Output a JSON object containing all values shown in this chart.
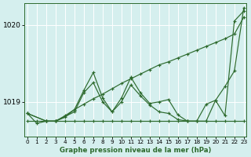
{
  "xlabel": "Graphe pression niveau de la mer (hPa)",
  "bg_color": "#d5efee",
  "grid_color": "#ffffff",
  "line_color": "#2d6a2d",
  "xlim": [
    -0.3,
    23.3
  ],
  "ylim": [
    1018.55,
    1020.28
  ],
  "yticks": [
    1019,
    1020
  ],
  "xticks": [
    0,
    1,
    2,
    3,
    4,
    5,
    6,
    7,
    8,
    9,
    10,
    11,
    12,
    13,
    14,
    15,
    16,
    17,
    18,
    19,
    20,
    21,
    22,
    23
  ],
  "series": [
    {
      "x": [
        0,
        1,
        2,
        3,
        4,
        5,
        6,
        7,
        8,
        9,
        10,
        11,
        12,
        13,
        14,
        15,
        16,
        17,
        18,
        19,
        20,
        21,
        22,
        23
      ],
      "y": [
        1018.75,
        1018.75,
        1018.75,
        1018.75,
        1018.75,
        1018.75,
        1018.75,
        1018.75,
        1018.75,
        1018.75,
        1018.75,
        1018.75,
        1018.75,
        1018.75,
        1018.75,
        1018.75,
        1018.75,
        1018.75,
        1018.75,
        1018.75,
        1018.75,
        1018.75,
        1018.75,
        1018.75
      ]
    },
    {
      "x": [
        0,
        1,
        2,
        3,
        4,
        5,
        6,
        7,
        8,
        9,
        10,
        11,
        12,
        13,
        14,
        15,
        16,
        17,
        18,
        19,
        20,
        21,
        22,
        23
      ],
      "y": [
        1018.85,
        1018.72,
        1018.75,
        1018.75,
        1018.8,
        1018.9,
        1019.15,
        1019.38,
        1019.05,
        1018.87,
        1019.05,
        1019.32,
        1019.12,
        1018.98,
        1019.0,
        1019.03,
        1018.83,
        1018.75,
        1018.75,
        1018.75,
        1019.02,
        1018.82,
        1020.05,
        1020.18
      ]
    },
    {
      "x": [
        0,
        2,
        3,
        4,
        5,
        6,
        7,
        8,
        9,
        10,
        11,
        12,
        13,
        14,
        15,
        16,
        17,
        18,
        19,
        20,
        21,
        22,
        23
      ],
      "y": [
        1018.85,
        1018.75,
        1018.75,
        1018.82,
        1018.9,
        1018.97,
        1019.04,
        1019.1,
        1019.17,
        1019.24,
        1019.3,
        1019.36,
        1019.42,
        1019.48,
        1019.52,
        1019.57,
        1019.62,
        1019.67,
        1019.72,
        1019.77,
        1019.82,
        1019.88,
        1020.1
      ]
    },
    {
      "x": [
        0,
        2,
        3,
        5,
        6,
        7,
        8,
        9,
        10,
        11,
        12,
        13,
        14,
        15,
        16,
        17,
        18,
        19,
        20,
        21,
        22,
        23
      ],
      "y": [
        1018.85,
        1018.75,
        1018.75,
        1018.87,
        1019.12,
        1019.25,
        1019.0,
        1018.87,
        1019.0,
        1019.22,
        1019.08,
        1018.96,
        1018.87,
        1018.85,
        1018.77,
        1018.75,
        1018.75,
        1018.97,
        1019.02,
        1019.2,
        1019.4,
        1020.22
      ]
    }
  ]
}
